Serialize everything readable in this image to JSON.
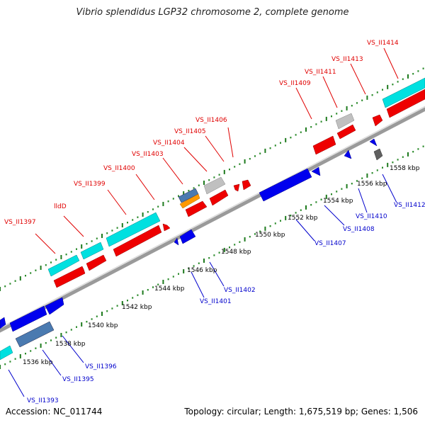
{
  "title": "Vibrio splendidus LGP32 chromosome 2, complete genome",
  "accession": "Accession: NC_011744",
  "summary": "Topology: circular; Length: 1,675,519 bp; Genes: 1,506",
  "colors": {
    "backbone": "#a0a0a0",
    "tick_major": "#228822",
    "tick_minor": "#2a8a2a",
    "label_forward": "#e00000",
    "label_reverse": "#0000cc",
    "scale_label": "#000000",
    "cds_forward": "#ee0000",
    "cds_reverse": "#0000ee",
    "rna": "#00d8d8",
    "gray_feature": "#c0c0c0",
    "dark_gray_feature": "#606060",
    "steelblue_feature": "#4a7ab0",
    "orange_feature": "#ff9900"
  },
  "scale_labels": [
    "1536 kbp",
    "1538 kbp",
    "1540 kbp",
    "1542 kbp",
    "1544 kbp",
    "1546 kbp",
    "1548 kbp",
    "1550 kbp",
    "1552 kbp",
    "1554 kbp",
    "1556 kbp",
    "1558 kbp"
  ],
  "forward_labels": [
    "VS_II1397",
    "lldD",
    "VS_II1399",
    "VS_II1400",
    "VS_II1403",
    "VS_II1404",
    "VS_II1405",
    "VS_II1406",
    "VS_II1409",
    "VS_II1411",
    "VS_II1413",
    "VS_II1414"
  ],
  "reverse_labels": [
    "VS_II1393",
    "VS_II1395",
    "VS_II1396",
    "VS_II1401",
    "VS_II1402",
    "VS_II1407",
    "VS_II1408",
    "VS_II1410",
    "VS_II1412"
  ]
}
